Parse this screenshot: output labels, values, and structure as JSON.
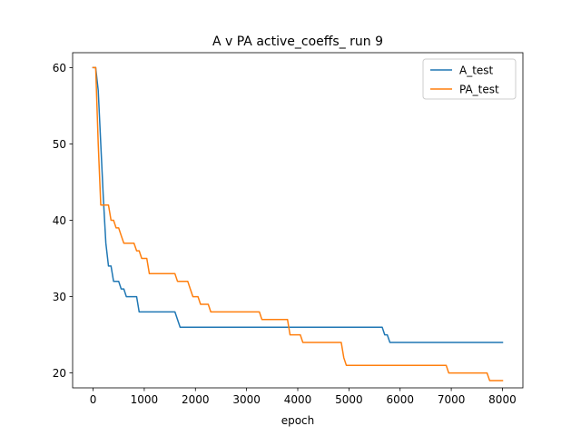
{
  "chart_data": {
    "type": "line",
    "title": "A v PA active_coeffs_ run 9",
    "xlabel": "epoch",
    "ylabel": "",
    "xlim": [
      -400,
      8400
    ],
    "ylim": [
      18.05,
      61.95
    ],
    "xticks": [
      0,
      1000,
      2000,
      3000,
      4000,
      5000,
      6000,
      7000,
      8000
    ],
    "yticks": [
      20,
      30,
      40,
      50,
      60
    ],
    "grid": false,
    "legend_position": "upper right",
    "series": [
      {
        "name": "A_test",
        "color": "#1f77b4",
        "points": [
          [
            0,
            60
          ],
          [
            50,
            60
          ],
          [
            100,
            57
          ],
          [
            150,
            50
          ],
          [
            200,
            43
          ],
          [
            250,
            37
          ],
          [
            300,
            34
          ],
          [
            350,
            34
          ],
          [
            400,
            32
          ],
          [
            500,
            32
          ],
          [
            550,
            31
          ],
          [
            600,
            31
          ],
          [
            650,
            30
          ],
          [
            850,
            30
          ],
          [
            900,
            28
          ],
          [
            1600,
            28
          ],
          [
            1700,
            26
          ],
          [
            5650,
            26
          ],
          [
            5700,
            25
          ],
          [
            5750,
            25
          ],
          [
            5800,
            24
          ],
          [
            8000,
            24
          ]
        ]
      },
      {
        "name": "PA_test",
        "color": "#ff7f0e",
        "points": [
          [
            0,
            60
          ],
          [
            50,
            60
          ],
          [
            100,
            50
          ],
          [
            150,
            42
          ],
          [
            300,
            42
          ],
          [
            350,
            40
          ],
          [
            400,
            40
          ],
          [
            450,
            39
          ],
          [
            500,
            39
          ],
          [
            550,
            38
          ],
          [
            600,
            37
          ],
          [
            800,
            37
          ],
          [
            850,
            36
          ],
          [
            900,
            36
          ],
          [
            950,
            35
          ],
          [
            1050,
            35
          ],
          [
            1100,
            33
          ],
          [
            1600,
            33
          ],
          [
            1650,
            32
          ],
          [
            1850,
            32
          ],
          [
            1900,
            31
          ],
          [
            1950,
            30
          ],
          [
            2050,
            30
          ],
          [
            2100,
            29
          ],
          [
            2250,
            29
          ],
          [
            2300,
            28
          ],
          [
            3250,
            28
          ],
          [
            3300,
            27
          ],
          [
            3800,
            27
          ],
          [
            3850,
            25
          ],
          [
            4050,
            25
          ],
          [
            4100,
            24
          ],
          [
            4850,
            24
          ],
          [
            4900,
            22
          ],
          [
            4950,
            21
          ],
          [
            6900,
            21
          ],
          [
            6950,
            20
          ],
          [
            7700,
            20
          ],
          [
            7750,
            19
          ],
          [
            8000,
            19
          ]
        ]
      }
    ]
  }
}
